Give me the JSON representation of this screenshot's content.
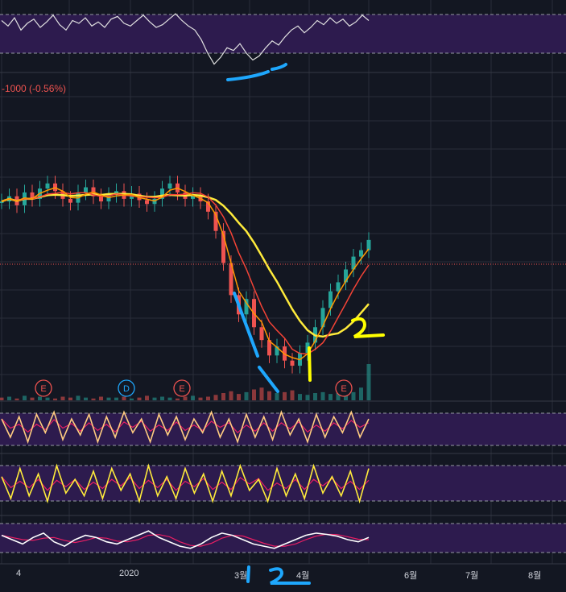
{
  "price_change_text": "-1000 (-0.56%)",
  "x_axis_labels": [
    "4",
    "2020",
    "3월",
    "4월",
    "6월",
    "7월",
    "8월"
  ],
  "event_markers": [
    "E",
    "D",
    "E",
    "E"
  ],
  "colors": {
    "background": "#131722",
    "grid": "#2a2e39",
    "band_fill": "#2d1b4e",
    "up_candle": "#26a69a",
    "down_candle": "#ef5350",
    "ma_yellow": "#ffeb3b",
    "ma_orange": "#ff9800",
    "ma_red": "#f44336",
    "annotation_blue": "#1ea7fd",
    "annotation_yellow": "#ffff00"
  },
  "annotations": [
    "1",
    "2",
    "1",
    "2"
  ],
  "chart_data": [
    {
      "type": "line",
      "panel": "oscillator-top",
      "series": [
        {
          "values": [
            62,
            58,
            64,
            55,
            60,
            63,
            57,
            61,
            66,
            59,
            55,
            62,
            60,
            64,
            58,
            61,
            57,
            63,
            65,
            60,
            58,
            62,
            66,
            61,
            57,
            59,
            63,
            67,
            62,
            58,
            55,
            48,
            38,
            30,
            35,
            42,
            40,
            45,
            38,
            33,
            36,
            42,
            47,
            44,
            50,
            55,
            58,
            53,
            57,
            62,
            59,
            64,
            60,
            63,
            58,
            61,
            66,
            62
          ]
        }
      ]
    },
    {
      "type": "candlestick",
      "panel": "price",
      "moving_averages": [
        "yellow",
        "orange",
        "red"
      ],
      "values": [
        248,
        252,
        245,
        255,
        250,
        258,
        262,
        256,
        250,
        247,
        255,
        259,
        252,
        248,
        253,
        256,
        250,
        254,
        249,
        246,
        250,
        258,
        262,
        255,
        250,
        253,
        248,
        240,
        225,
        200,
        175,
        160,
        172,
        150,
        140,
        128,
        135,
        124,
        120,
        130,
        138,
        150,
        165,
        178,
        185,
        195,
        205,
        210,
        218
      ]
    },
    {
      "type": "bar",
      "panel": "volume",
      "values": [
        3,
        4,
        2,
        5,
        3,
        4,
        3,
        2,
        4,
        3,
        5,
        3,
        2,
        4,
        3,
        3,
        4,
        2,
        3,
        5,
        3,
        4,
        3,
        2,
        4,
        5,
        3,
        4,
        6,
        8,
        10,
        7,
        9,
        12,
        14,
        10,
        8,
        9,
        11,
        7,
        6,
        8,
        9,
        7,
        8,
        10,
        9,
        14,
        40
      ]
    },
    {
      "type": "line",
      "panel": "stochastic-1",
      "series": [
        {
          "values": [
            70,
            30,
            75,
            20,
            80,
            40,
            85,
            25,
            70,
            35,
            80,
            20,
            75,
            30,
            85,
            40,
            70,
            20,
            80,
            35,
            75,
            25,
            70,
            40,
            85,
            30,
            70,
            20,
            80,
            30,
            75,
            25,
            85,
            35,
            70,
            20,
            80,
            30,
            75,
            40,
            85,
            30,
            70
          ]
        }
      ]
    },
    {
      "type": "line",
      "panel": "stochastic-2",
      "series": [
        {
          "values": [
            65,
            25,
            80,
            30,
            70,
            20,
            85,
            35,
            60,
            30,
            75,
            25,
            80,
            40,
            70,
            20,
            85,
            30,
            65,
            25,
            80,
            35,
            70,
            20,
            75,
            30,
            85,
            40,
            60,
            20,
            80,
            30,
            70,
            25,
            85,
            35,
            65,
            30,
            75,
            20,
            80
          ]
        }
      ]
    },
    {
      "type": "line",
      "panel": "stochastic-3",
      "series": [
        {
          "values": [
            60,
            50,
            40,
            55,
            65,
            45,
            35,
            50,
            60,
            55,
            45,
            40,
            50,
            60,
            70,
            55,
            45,
            35,
            30,
            40,
            55,
            65,
            60,
            50,
            40,
            35,
            30,
            40,
            50,
            60,
            65,
            62,
            58,
            50,
            45,
            55
          ]
        }
      ]
    }
  ]
}
